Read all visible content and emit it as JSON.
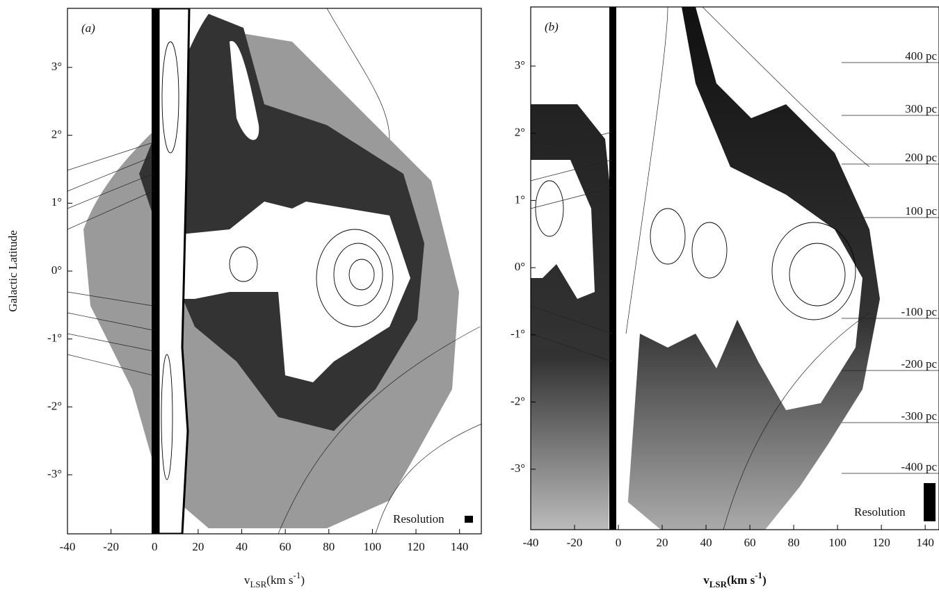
{
  "chart_data": [
    {
      "type": "contour",
      "panel_label": "(a)",
      "xlabel": [
        "v",
        "LSR",
        "(km s",
        "-1",
        ")"
      ],
      "ylabel": "Galactic Latitude",
      "xlim": [
        -40,
        150
      ],
      "ylim": [
        -3.87,
        3.87
      ],
      "xticks": [
        -40,
        -20,
        0,
        20,
        40,
        60,
        80,
        100,
        120,
        140
      ],
      "yticks": [
        {
          "value": 3,
          "label": "3°"
        },
        {
          "value": 2,
          "label": "2°"
        },
        {
          "value": 1,
          "label": "1°"
        },
        {
          "value": 0,
          "label": "0°"
        },
        {
          "value": -1,
          "label": "-1°"
        },
        {
          "value": -2,
          "label": "-2°"
        },
        {
          "value": -3,
          "label": "-3°"
        }
      ],
      "annotations": [],
      "resolution_label": "Resolution"
    },
    {
      "type": "contour",
      "panel_label": "(b)",
      "xlabel": [
        "v",
        "LSR",
        "(km s",
        "-1",
        ")"
      ],
      "xlim": [
        -40,
        146.3
      ],
      "ylim": [
        -3.9,
        3.88
      ],
      "xticks": [
        -40,
        -20,
        0,
        20,
        40,
        60,
        80,
        100,
        120,
        140
      ],
      "yticks": [
        {
          "value": 3,
          "label": "3°"
        },
        {
          "value": 2,
          "label": "2°"
        },
        {
          "value": 1,
          "label": "1°"
        },
        {
          "value": 0,
          "label": "0°"
        },
        {
          "value": -1,
          "label": "-1°"
        },
        {
          "value": -2,
          "label": "-2°"
        },
        {
          "value": -3,
          "label": "-3°"
        }
      ],
      "annotations": [
        "400 pc",
        "300 pc",
        "200 pc",
        "100 pc",
        "-100 pc",
        "-200 pc",
        "-300 pc",
        "-400 pc"
      ],
      "resolution_label": "Resolution"
    }
  ]
}
